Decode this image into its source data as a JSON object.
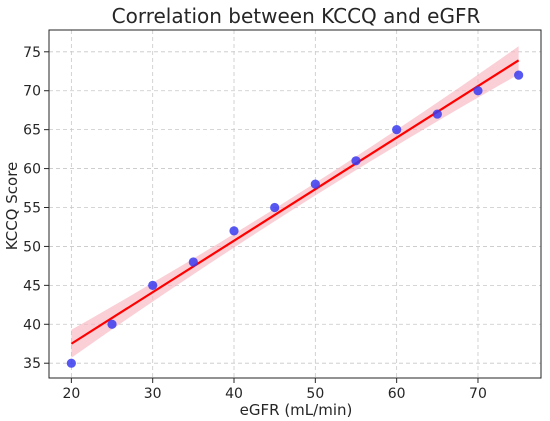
{
  "chart_data": {
    "type": "scatter",
    "title": "Correlation between KCCQ and eGFR",
    "xlabel": "eGFR (mL/min)",
    "ylabel": "KCCQ Score",
    "xlim": [
      17.25,
      77.75
    ],
    "ylim": [
      33.1,
      77.8
    ],
    "xticks": [
      20,
      30,
      40,
      50,
      60,
      70
    ],
    "yticks": [
      35,
      40,
      45,
      50,
      55,
      60,
      65,
      70,
      75
    ],
    "grid": true,
    "series": [
      {
        "kind": "scatter",
        "color": "#3a3af0",
        "x": [
          20,
          25,
          30,
          35,
          40,
          45,
          50,
          55,
          60,
          65,
          70,
          75
        ],
        "y": [
          35,
          40,
          45,
          48,
          52,
          55,
          58,
          61,
          65,
          67,
          70,
          72
        ]
      },
      {
        "kind": "regression-line",
        "color": "#ff0000",
        "x": [
          20,
          75
        ],
        "y": [
          37.5,
          73.9
        ],
        "ci_color": "#f7b6bf",
        "ci_halfwidth_ends": 1.8,
        "ci_halfwidth_mid": 0.8
      }
    ]
  }
}
